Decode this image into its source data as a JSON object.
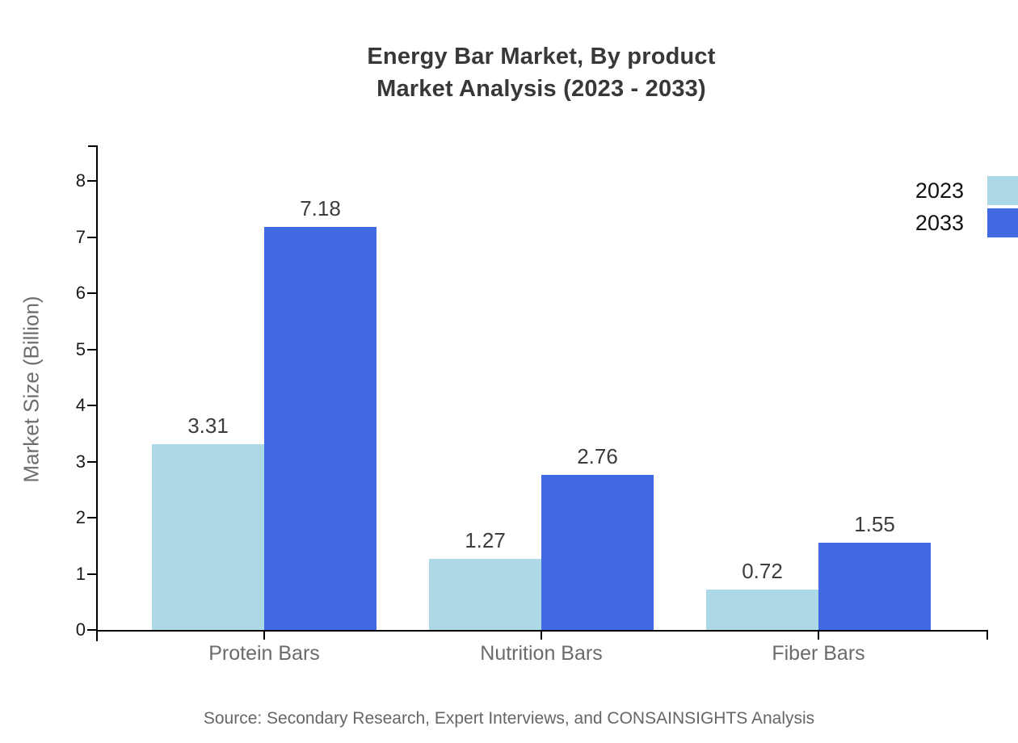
{
  "title": {
    "line1": "Energy Bar Market, By product",
    "line2": "Market Analysis (2023 - 2033)"
  },
  "source": "Source: Secondary Research, Expert Interviews, and CONSAINSIGHTS Analysis",
  "chart_data": {
    "type": "bar",
    "title": "Energy Bar Market, By product Market Analysis (2023 - 2033)",
    "categories": [
      "Protein Bars",
      "Nutrition Bars",
      "Fiber Bars"
    ],
    "series": [
      {
        "name": "2023",
        "color": "#ADD8E6",
        "values": [
          3.31,
          1.27,
          0.72
        ]
      },
      {
        "name": "2033",
        "color": "#4169E1",
        "values": [
          7.18,
          2.76,
          1.55
        ]
      }
    ],
    "xlabel": "",
    "ylabel": "Market Size (Billion)",
    "ylim": [
      0,
      8
    ],
    "yticks": [
      0,
      1,
      2,
      3,
      4,
      5,
      6,
      7,
      8
    ],
    "grid": false,
    "legend_position": "top-right",
    "value_labels": true,
    "value_label_format": "0.00"
  },
  "colors": {
    "axis": "#000000",
    "title_text": "#383838",
    "y_tick_label": "#1a1a1a",
    "category_label": "#6b6b6b",
    "value_label": "#3d3d3d",
    "axis_title": "#6e6e6e",
    "source_text": "#666666",
    "background": "#ffffff"
  }
}
